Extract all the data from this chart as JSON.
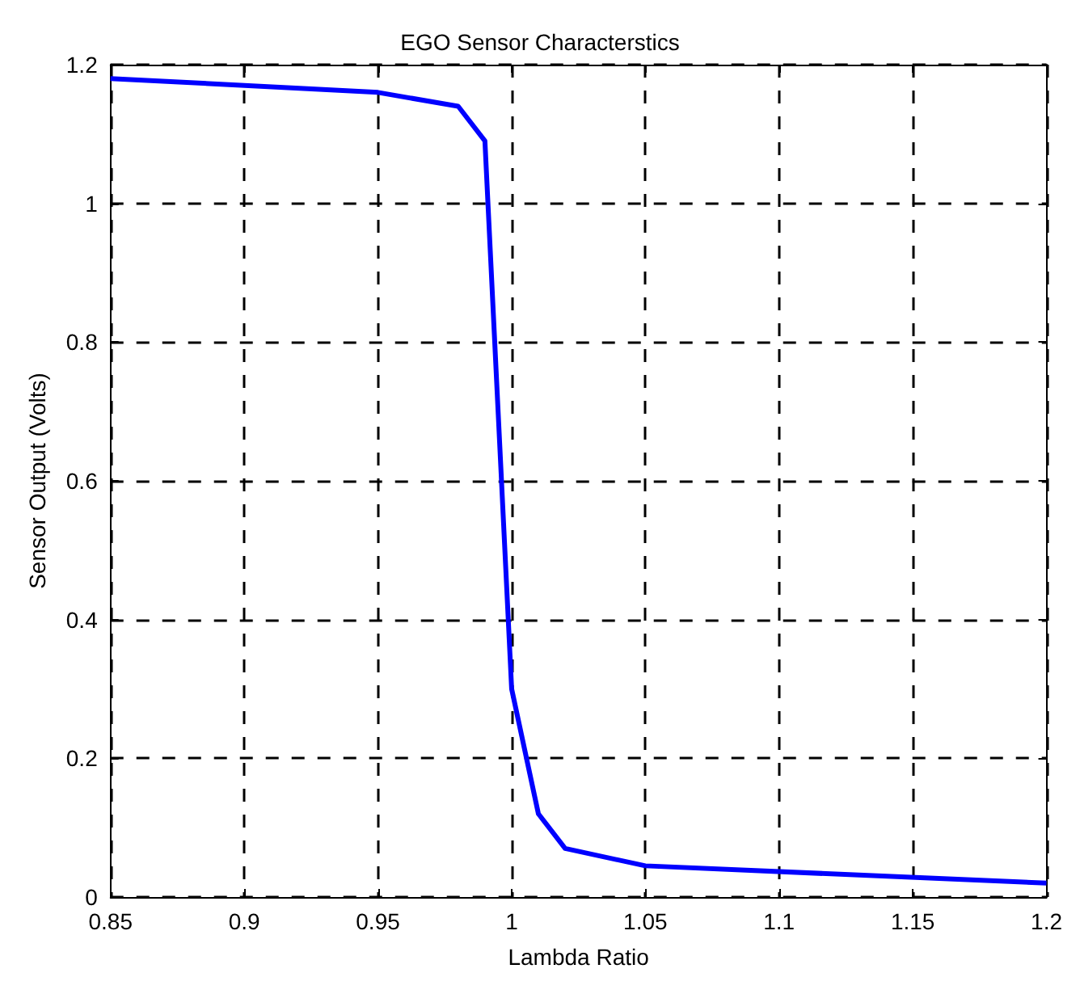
{
  "chart_data": {
    "type": "line",
    "title": "EGO Sensor Characterstics",
    "xlabel": "Lambda Ratio",
    "ylabel": "Sensor Output (Volts)",
    "x": [
      0.85,
      0.95,
      0.98,
      0.99,
      1.0,
      1.01,
      1.02,
      1.05,
      1.2
    ],
    "series": [
      {
        "color": "#0000ff",
        "values": [
          1.18,
          1.16,
          1.14,
          1.09,
          0.3,
          0.12,
          0.07,
          0.045,
          0.02
        ]
      }
    ],
    "xlim": [
      0.85,
      1.2
    ],
    "xticks": [
      0.85,
      0.9,
      0.95,
      1,
      1.05,
      1.1,
      1.15,
      1.2
    ],
    "ylim": [
      0,
      1.2
    ],
    "yticks": [
      0,
      0.2,
      0.4,
      0.6,
      0.8,
      1,
      1.2
    ],
    "grid": true,
    "marker": "none",
    "line_style": "solid"
  }
}
